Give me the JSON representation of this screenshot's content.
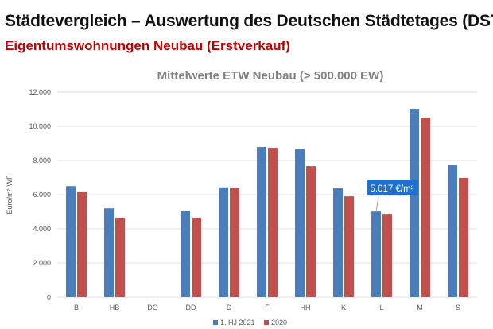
{
  "header": {
    "title": "Städtevergleich – Auswertung des Deutschen Städtetages (DST)",
    "subtitle": "Eigentumswohnungen Neubau (Erstverkauf)"
  },
  "chart_data": {
    "type": "bar",
    "title": "Mittelwerte ETW Neubau (> 500.000 EW)",
    "xlabel": "",
    "ylabel": "Euro/m²-WF",
    "ylim": [
      0,
      12000
    ],
    "yticks": [
      "0",
      "2.000",
      "4.000",
      "6.000",
      "8.000",
      "10.000",
      "12.000"
    ],
    "grid": true,
    "legend": "bottom",
    "categories": [
      "B",
      "HB",
      "DO",
      "DD",
      "D",
      "F",
      "HH",
      "K",
      "L",
      "M",
      "S"
    ],
    "series": [
      {
        "name": "1. HJ 2021",
        "color": "#4a7ebb",
        "values": [
          6500,
          5200,
          null,
          5070,
          6430,
          8790,
          8650,
          6370,
          5017,
          11020,
          7720
        ]
      },
      {
        "name": "2020",
        "color": "#c0504d",
        "values": [
          6190,
          4650,
          null,
          4650,
          6400,
          8740,
          7670,
          5900,
          4880,
          10510,
          6980
        ]
      }
    ],
    "annotation": {
      "text": "5.017 €/m²",
      "category": "L",
      "series": "1. HJ 2021",
      "color": "#1f6fd1"
    }
  }
}
